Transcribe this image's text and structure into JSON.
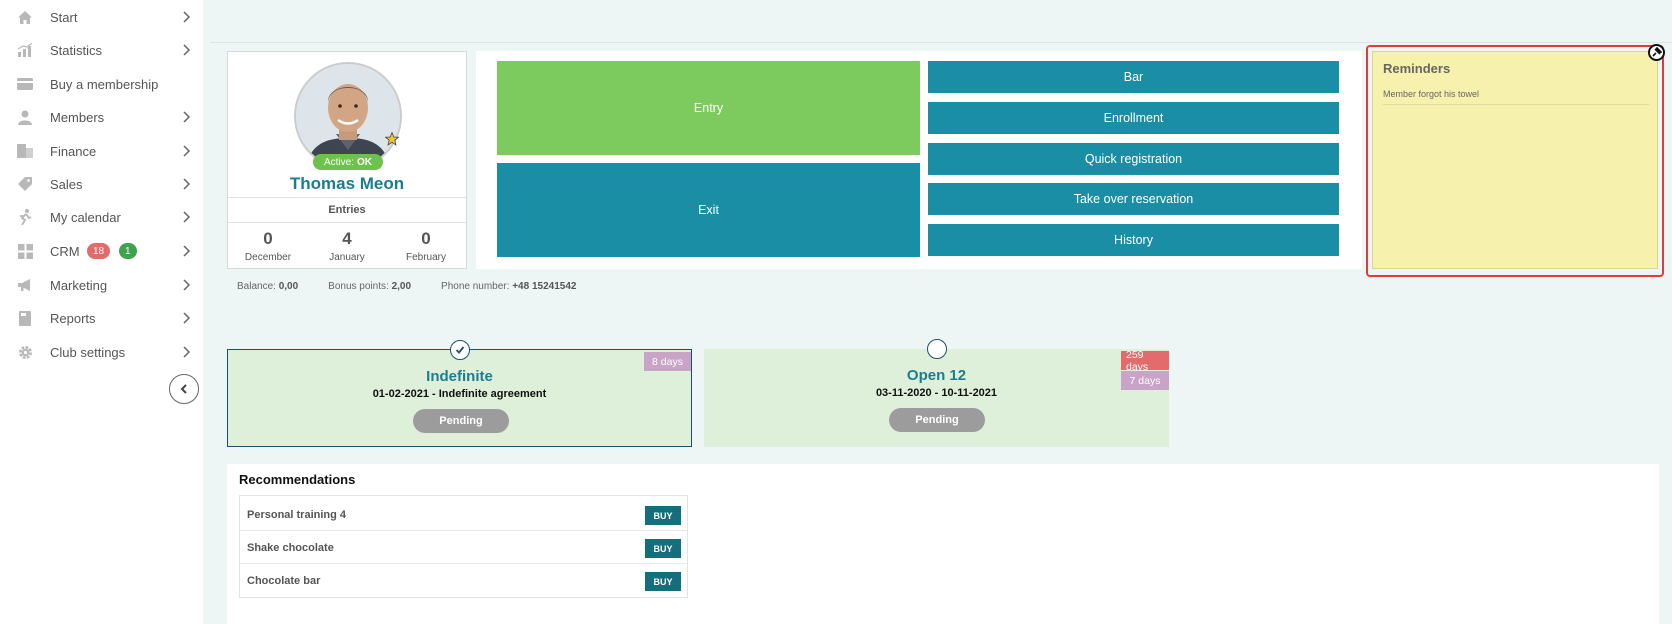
{
  "sidebar": {
    "items": [
      {
        "label": "Start",
        "icon": "home-icon"
      },
      {
        "label": "Statistics",
        "icon": "chart-icon"
      },
      {
        "label": "Buy a membership",
        "icon": "card-icon"
      },
      {
        "label": "Members",
        "icon": "user-icon"
      },
      {
        "label": "Finance",
        "icon": "finance-icon"
      },
      {
        "label": "Sales",
        "icon": "tag-icon"
      },
      {
        "label": "My calendar",
        "icon": "runner-icon"
      },
      {
        "label": "CRM",
        "icon": "grid-icon",
        "badges": [
          "18",
          "1"
        ]
      },
      {
        "label": "Marketing",
        "icon": "megaphone-icon"
      },
      {
        "label": "Reports",
        "icon": "book-icon"
      },
      {
        "label": "Club settings",
        "icon": "gear-icon"
      }
    ]
  },
  "profile": {
    "status_label": "Active:",
    "status_value": "OK",
    "name": "Thomas Meon",
    "entries_heading": "Entries",
    "entries": [
      {
        "count": "0",
        "month": "December"
      },
      {
        "count": "4",
        "month": "January"
      },
      {
        "count": "0",
        "month": "February"
      }
    ]
  },
  "actions": {
    "entry": "Entry",
    "exit": "Exit",
    "bar": "Bar",
    "enrollment": "Enrollment",
    "quick_registration": "Quick registration",
    "take_over_reservation": "Take over reservation",
    "history": "History"
  },
  "reminders": {
    "title": "Reminders",
    "items": [
      "Member forgot his towel"
    ]
  },
  "info": {
    "balance_label": "Balance:",
    "balance_value": "0,00",
    "bonus_label": "Bonus points:",
    "bonus_value": "2,00",
    "phone_label": "Phone number:",
    "phone_value": "+48 15241542"
  },
  "memberships": [
    {
      "name": "Indefinite",
      "dates": "01-02-2021 - Indefinite agreement",
      "status": "Pending",
      "tags": [
        "8 days"
      ],
      "selected": true
    },
    {
      "name": "Open 12",
      "dates": "03-11-2020 - 10-11-2021",
      "status": "Pending",
      "tags": [
        "259 days",
        "7 days"
      ],
      "selected": false
    }
  ],
  "recommendations": {
    "title": "Recommendations",
    "buy_label": "BUY",
    "items": [
      "Personal training 4",
      "Shake chocolate",
      "Chocolate bar"
    ]
  },
  "colors": {
    "accent_teal": "#1a8ea4",
    "entry_green": "#7dcb5e",
    "reminder_yellow": "#f7f1ae",
    "highlight_red": "#e23b3b",
    "badge_red": "#e36b6b",
    "badge_green": "#3fa34d"
  }
}
